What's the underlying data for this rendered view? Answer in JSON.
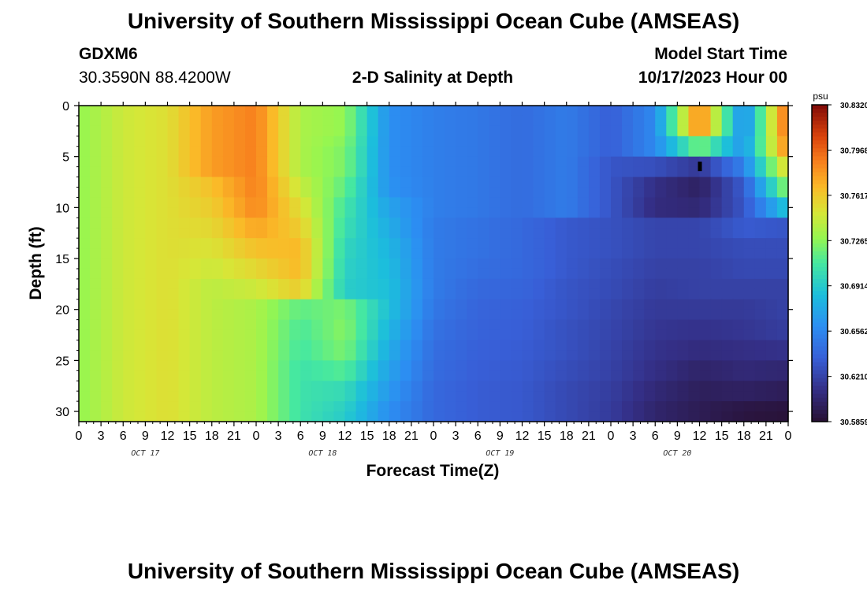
{
  "header": {
    "title": "University of Southern Mississippi Ocean Cube (AMSEAS)",
    "station": "GDXM6",
    "coords": "30.3590N  88.4200W",
    "subtitle": "2-D Salinity at Depth",
    "model_label": "Model Start Time",
    "model_time": "10/17/2023 Hour 00"
  },
  "footer": {
    "title": "University of Southern Mississippi Ocean Cube (AMSEAS)"
  },
  "colorbar": {
    "unit": "psu",
    "labels": [
      "30.8320",
      "30.7968",
      "30.7617",
      "30.7265",
      "30.6914",
      "30.6562",
      "30.6210",
      "30.5859"
    ]
  },
  "chart_data": {
    "type": "heatmap",
    "title": "2-D Salinity at Depth",
    "xlabel": "Forecast Time(Z)",
    "ylabel": "Depth (ft)",
    "x_tick_labels": [
      "0",
      "3",
      "6",
      "9",
      "12",
      "15",
      "18",
      "21",
      "0",
      "3",
      "6",
      "9",
      "12",
      "15",
      "18",
      "21",
      "0",
      "3",
      "6",
      "9",
      "12",
      "15",
      "18",
      "21",
      "0",
      "3",
      "6",
      "9",
      "12",
      "15",
      "18",
      "21",
      "0"
    ],
    "x_range_hours": [
      0,
      96
    ],
    "date_labels": [
      "OCT 17",
      "OCT 18",
      "OCT 19",
      "OCT 20"
    ],
    "y_ticks": [
      0,
      5,
      10,
      15,
      20,
      25,
      30
    ],
    "ylim": [
      0,
      31
    ],
    "value_range": [
      30.5859,
      30.832
    ],
    "units": "psu",
    "colormap": "turbo",
    "grid": false,
    "depth_ft": [
      0,
      1,
      2,
      3,
      4,
      5,
      6,
      7,
      8,
      9,
      10,
      11,
      12,
      13,
      14,
      15,
      16,
      17,
      18,
      19,
      20,
      21,
      22,
      23,
      24,
      25,
      26,
      27,
      28,
      29,
      30,
      31
    ],
    "hours": [
      0,
      6,
      12,
      18,
      24,
      30,
      36,
      42,
      48,
      54,
      60,
      66,
      72,
      78,
      84,
      90,
      96
    ],
    "salinity": [
      [
        30.728,
        30.745,
        30.752,
        30.778,
        30.788,
        30.735,
        30.728,
        30.66,
        30.652,
        30.648,
        30.642,
        30.65,
        30.635,
        30.657,
        30.79,
        30.655,
        30.8
      ],
      [
        30.728,
        30.745,
        30.752,
        30.778,
        30.788,
        30.735,
        30.728,
        30.66,
        30.652,
        30.648,
        30.642,
        30.65,
        30.635,
        30.657,
        30.79,
        30.655,
        30.8
      ],
      [
        30.728,
        30.745,
        30.752,
        30.778,
        30.788,
        30.735,
        30.728,
        30.66,
        30.652,
        30.648,
        30.642,
        30.65,
        30.635,
        30.657,
        30.79,
        30.655,
        30.8
      ],
      [
        30.728,
        30.745,
        30.752,
        30.778,
        30.788,
        30.735,
        30.725,
        30.66,
        30.652,
        30.648,
        30.642,
        30.65,
        30.635,
        30.657,
        30.722,
        30.663,
        30.79
      ],
      [
        30.728,
        30.745,
        30.752,
        30.778,
        30.788,
        30.735,
        30.722,
        30.66,
        30.652,
        30.648,
        30.642,
        30.65,
        30.635,
        30.657,
        30.722,
        30.663,
        30.79
      ],
      [
        30.728,
        30.745,
        30.752,
        30.778,
        30.788,
        30.735,
        30.722,
        30.66,
        30.652,
        30.648,
        30.642,
        30.65,
        30.63,
        30.627,
        30.615,
        30.653,
        30.76
      ],
      [
        30.728,
        30.745,
        30.752,
        30.778,
        30.788,
        30.735,
        30.722,
        30.66,
        30.652,
        30.648,
        30.642,
        30.65,
        30.63,
        30.627,
        30.615,
        30.653,
        30.76
      ],
      [
        30.728,
        30.745,
        30.752,
        30.765,
        30.788,
        30.743,
        30.715,
        30.662,
        30.652,
        30.648,
        30.642,
        30.65,
        30.63,
        30.61,
        30.6,
        30.633,
        30.73
      ],
      [
        30.728,
        30.745,
        30.752,
        30.765,
        30.788,
        30.743,
        30.715,
        30.662,
        30.652,
        30.648,
        30.642,
        30.65,
        30.63,
        30.61,
        30.6,
        30.633,
        30.73
      ],
      [
        30.728,
        30.745,
        30.752,
        30.76,
        30.785,
        30.752,
        30.707,
        30.67,
        30.652,
        30.648,
        30.642,
        30.65,
        30.63,
        30.608,
        30.605,
        30.63,
        30.69
      ],
      [
        30.728,
        30.745,
        30.752,
        30.76,
        30.785,
        30.752,
        30.707,
        30.67,
        30.652,
        30.648,
        30.642,
        30.65,
        30.63,
        30.608,
        30.605,
        30.63,
        30.69
      ],
      [
        30.728,
        30.745,
        30.752,
        30.755,
        30.775,
        30.76,
        30.703,
        30.675,
        30.65,
        30.645,
        30.64,
        30.632,
        30.628,
        30.622,
        30.622,
        30.633,
        30.63
      ],
      [
        30.728,
        30.745,
        30.752,
        30.755,
        30.775,
        30.76,
        30.703,
        30.675,
        30.65,
        30.645,
        30.64,
        30.632,
        30.628,
        30.622,
        30.622,
        30.633,
        30.63
      ],
      [
        30.728,
        30.745,
        30.752,
        30.75,
        30.765,
        30.768,
        30.698,
        30.68,
        30.65,
        30.645,
        30.64,
        30.632,
        30.628,
        30.622,
        30.622,
        30.626,
        30.626
      ],
      [
        30.728,
        30.745,
        30.752,
        30.75,
        30.765,
        30.768,
        30.698,
        30.68,
        30.65,
        30.645,
        30.64,
        30.632,
        30.628,
        30.622,
        30.622,
        30.626,
        30.626
      ],
      [
        30.728,
        30.745,
        30.752,
        30.745,
        30.755,
        30.768,
        30.695,
        30.683,
        30.65,
        30.643,
        30.64,
        30.632,
        30.626,
        30.62,
        30.62,
        30.624,
        30.624
      ],
      [
        30.728,
        30.745,
        30.752,
        30.745,
        30.755,
        30.768,
        30.695,
        30.683,
        30.65,
        30.643,
        30.64,
        30.632,
        30.626,
        30.62,
        30.62,
        30.624,
        30.624
      ],
      [
        30.728,
        30.745,
        30.752,
        30.74,
        30.745,
        30.76,
        30.693,
        30.685,
        30.65,
        30.64,
        30.638,
        30.63,
        30.625,
        30.618,
        30.62,
        30.62,
        30.62
      ],
      [
        30.728,
        30.745,
        30.752,
        30.74,
        30.745,
        30.76,
        30.693,
        30.685,
        30.65,
        30.64,
        30.638,
        30.63,
        30.625,
        30.618,
        30.62,
        30.62,
        30.62
      ],
      [
        30.728,
        30.745,
        30.752,
        30.74,
        30.735,
        30.715,
        30.722,
        30.685,
        30.648,
        30.638,
        30.636,
        30.63,
        30.623,
        30.616,
        30.616,
        30.616,
        30.62
      ],
      [
        30.728,
        30.745,
        30.752,
        30.74,
        30.735,
        30.715,
        30.722,
        30.685,
        30.648,
        30.638,
        30.636,
        30.63,
        30.623,
        30.616,
        30.616,
        30.616,
        30.62
      ],
      [
        30.728,
        30.745,
        30.752,
        30.74,
        30.735,
        30.71,
        30.725,
        30.68,
        30.645,
        30.637,
        30.635,
        30.628,
        30.622,
        30.614,
        30.612,
        30.614,
        30.618
      ],
      [
        30.728,
        30.745,
        30.752,
        30.74,
        30.735,
        30.71,
        30.725,
        30.68,
        30.645,
        30.637,
        30.635,
        30.628,
        30.622,
        30.614,
        30.612,
        30.614,
        30.618
      ],
      [
        30.728,
        30.745,
        30.752,
        30.74,
        30.735,
        30.708,
        30.722,
        30.675,
        30.643,
        30.636,
        30.634,
        30.628,
        30.621,
        30.612,
        30.608,
        30.61,
        30.612
      ],
      [
        30.728,
        30.745,
        30.752,
        30.74,
        30.735,
        30.708,
        30.722,
        30.675,
        30.643,
        30.636,
        30.634,
        30.628,
        30.621,
        30.612,
        30.608,
        30.61,
        30.612
      ],
      [
        30.728,
        30.745,
        30.752,
        30.74,
        30.735,
        30.705,
        30.712,
        30.67,
        30.642,
        30.635,
        30.633,
        30.626,
        30.62,
        30.61,
        30.602,
        30.606,
        30.604
      ],
      [
        30.728,
        30.745,
        30.752,
        30.74,
        30.735,
        30.705,
        30.712,
        30.67,
        30.642,
        30.635,
        30.633,
        30.626,
        30.62,
        30.61,
        30.602,
        30.606,
        30.604
      ],
      [
        30.728,
        30.745,
        30.752,
        30.74,
        30.735,
        30.705,
        30.7,
        30.665,
        30.64,
        30.634,
        30.632,
        30.624,
        30.618,
        30.606,
        30.598,
        30.6,
        30.597
      ],
      [
        30.728,
        30.745,
        30.752,
        30.74,
        30.735,
        30.705,
        30.7,
        30.665,
        30.64,
        30.634,
        30.632,
        30.624,
        30.618,
        30.606,
        30.598,
        30.6,
        30.597
      ],
      [
        30.728,
        30.745,
        30.752,
        30.74,
        30.735,
        30.705,
        30.695,
        30.66,
        30.64,
        30.634,
        30.632,
        30.624,
        30.617,
        30.603,
        30.596,
        30.592,
        30.59
      ],
      [
        30.728,
        30.745,
        30.752,
        30.74,
        30.735,
        30.705,
        30.692,
        30.66,
        30.64,
        30.634,
        30.632,
        30.624,
        30.617,
        30.603,
        30.596,
        30.59,
        30.588
      ],
      [
        30.728,
        30.745,
        30.752,
        30.74,
        30.735,
        30.705,
        30.692,
        30.66,
        30.64,
        30.634,
        30.632,
        30.624,
        30.617,
        30.603,
        30.596,
        30.59,
        30.588
      ]
    ]
  }
}
